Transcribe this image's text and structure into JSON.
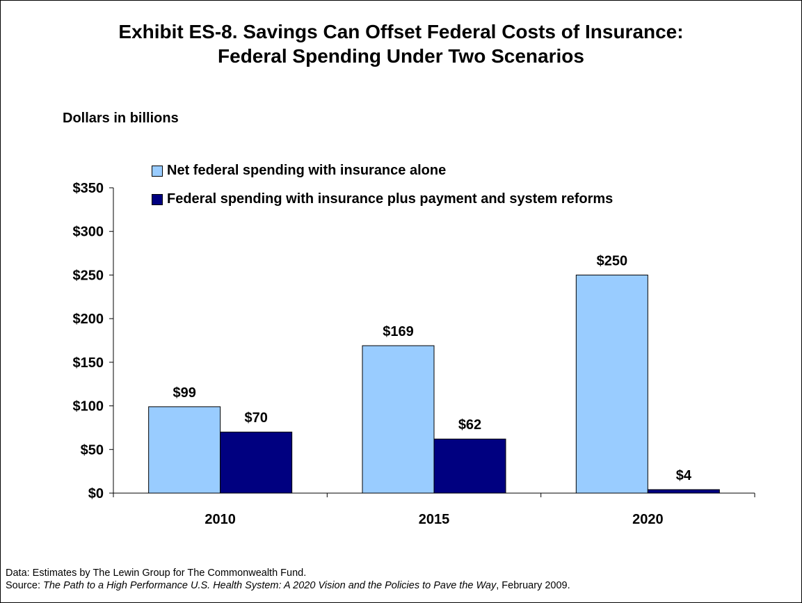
{
  "title_line1": "Exhibit ES-8. Savings Can Offset Federal Costs of Insurance:",
  "title_line2": "Federal Spending Under Two Scenarios",
  "subtitle": "Dollars in billions",
  "colors": {
    "series1": "#99ccff",
    "series2": "#000080",
    "axis": "#000000"
  },
  "chart_data": {
    "type": "bar",
    "categories": [
      "2010",
      "2015",
      "2020"
    ],
    "series": [
      {
        "name": "Net federal spending with insurance alone",
        "values": [
          99,
          169,
          250
        ],
        "labels": [
          "$99",
          "$169",
          "$250"
        ]
      },
      {
        "name": "Federal spending with insurance plus payment and system reforms",
        "values": [
          70,
          62,
          4
        ],
        "labels": [
          "$70",
          "$62",
          "$4"
        ]
      }
    ],
    "ylim": [
      0,
      350
    ],
    "yticks": [
      0,
      50,
      100,
      150,
      200,
      250,
      300,
      350
    ],
    "ytick_labels": [
      "$0",
      "$50",
      "$100",
      "$150",
      "$200",
      "$250",
      "$300",
      "$350"
    ],
    "legend_position": "top-left",
    "grid": false
  },
  "footnote": {
    "data_line": "Data: Estimates by The Lewin Group for The Commonwealth Fund.",
    "source_prefix": "Source: ",
    "source_title": "The Path to a High Performance U.S. Health System: A 2020 Vision and the Policies to Pave the Way",
    "source_suffix": ", February 2009."
  }
}
